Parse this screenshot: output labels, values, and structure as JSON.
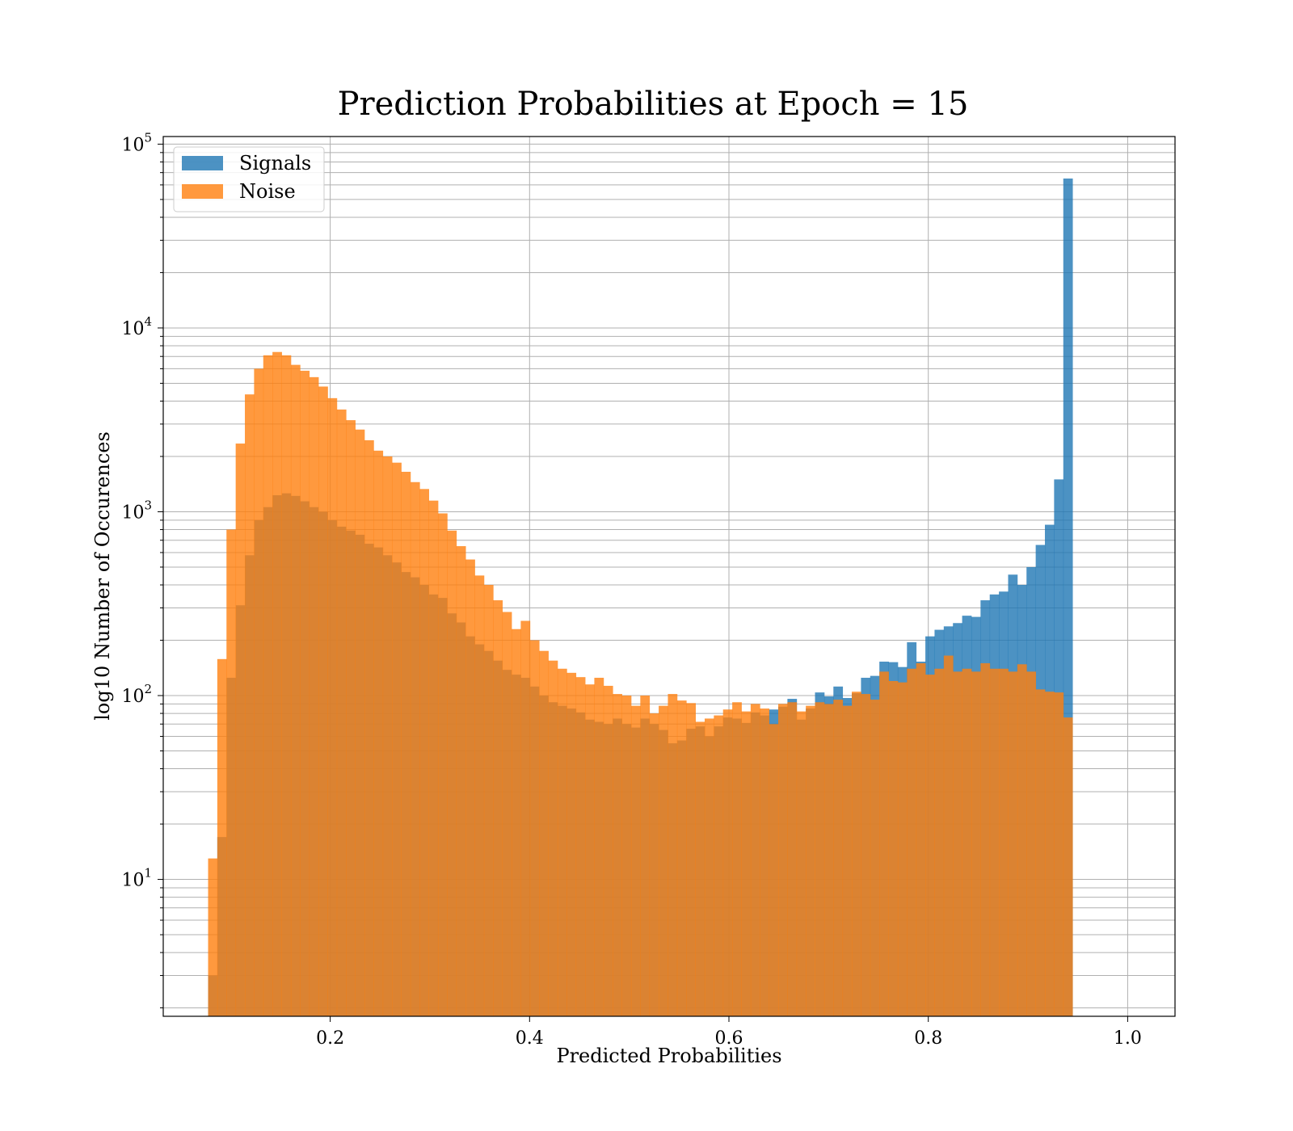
{
  "chart_data": {
    "type": "bar",
    "title": "Prediction Probabilities at Epoch = 15",
    "xlabel": "Predicted Probabilities",
    "ylabel": "log10 Number of Occurences",
    "xlim": [
      0.0325,
      1.0475
    ],
    "ylim": [
      1.8,
      110000
    ],
    "yscale": "log",
    "grid": true,
    "legend_position": "top-left",
    "xticks": [
      0.2,
      0.4,
      0.6,
      0.8,
      1.0
    ],
    "xtick_labels": [
      "0.2",
      "0.4",
      "0.6",
      "0.8",
      "1.0"
    ],
    "yticks": [
      10,
      100,
      1000,
      10000,
      100000
    ],
    "ytick_labels": [
      {
        "base": "10",
        "exp": "1"
      },
      {
        "base": "10",
        "exp": "2"
      },
      {
        "base": "10",
        "exp": "3"
      },
      {
        "base": "10",
        "exp": "4"
      },
      {
        "base": "10",
        "exp": "5"
      }
    ],
    "bin_start": 0.0775,
    "bin_width": 0.009225,
    "series": [
      {
        "name": "Signals",
        "color": "#1f77b4",
        "opacity": 0.8,
        "values": [
          3,
          17,
          125,
          310,
          580,
          900,
          1060,
          1230,
          1260,
          1220,
          1140,
          1060,
          1000,
          900,
          830,
          790,
          750,
          670,
          640,
          580,
          530,
          470,
          440,
          400,
          355,
          340,
          280,
          250,
          210,
          190,
          175,
          155,
          138,
          130,
          125,
          112,
          100,
          92,
          88,
          85,
          81,
          74,
          72,
          70,
          75,
          70,
          67,
          75,
          70,
          65,
          55,
          57,
          66,
          68,
          60,
          68,
          76,
          75,
          71,
          81,
          78,
          84,
          87,
          96,
          74,
          85,
          104,
          99,
          112,
          97,
          103,
          125,
          128,
          153,
          152,
          143,
          195,
          153,
          210,
          228,
          238,
          248,
          272,
          268,
          330,
          355,
          368,
          455,
          400,
          500,
          660,
          850,
          1500,
          65000
        ]
      },
      {
        "name": "Noise",
        "color": "#ff7f0e",
        "opacity": 0.8,
        "values": [
          13,
          158,
          800,
          2350,
          4350,
          6000,
          7100,
          7400,
          7100,
          6300,
          5850,
          5400,
          4800,
          4150,
          3600,
          3150,
          2800,
          2450,
          2150,
          2000,
          1850,
          1650,
          1450,
          1330,
          1150,
          980,
          790,
          650,
          550,
          450,
          400,
          330,
          285,
          230,
          255,
          200,
          175,
          155,
          140,
          133,
          126,
          115,
          125,
          113,
          102,
          100,
          88,
          100,
          80,
          88,
          102,
          94,
          91,
          72,
          75,
          78,
          84,
          92,
          82,
          90,
          85,
          70,
          90,
          92,
          82,
          88,
          92,
          90,
          95,
          88,
          105,
          102,
          95,
          135,
          120,
          118,
          140,
          150,
          130,
          140,
          165,
          135,
          140,
          135,
          150,
          140,
          140,
          135,
          148,
          135,
          108,
          105,
          104,
          76
        ]
      }
    ]
  }
}
